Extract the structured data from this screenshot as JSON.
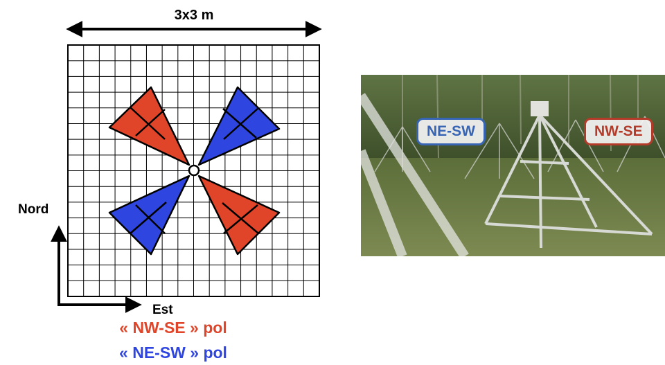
{
  "diagram": {
    "size_label": "3x3 m",
    "north_label": "Nord",
    "east_label": "Est",
    "legend_nwse": "« NW-SE » pol",
    "legend_nesw": "« NE-SW » pol",
    "grid_cells": 16,
    "colors": {
      "nwse": "#e0452a",
      "nesw": "#2f45e0",
      "grid": "#000000"
    }
  },
  "photo": {
    "label_nesw": "NE-SW",
    "label_nwse": "NW-SE",
    "colors": {
      "nesw": "#3764b3",
      "nwse": "#b43a2a"
    }
  }
}
